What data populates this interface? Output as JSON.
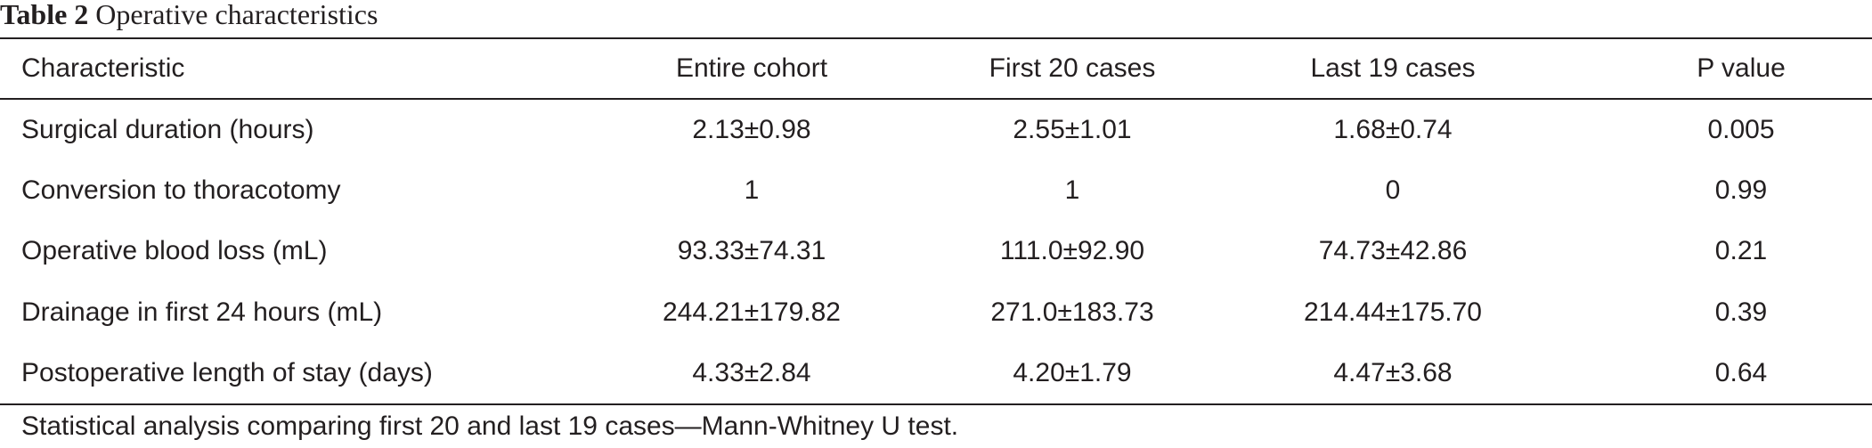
{
  "caption": {
    "label": "Table 2",
    "title": "Operative characteristics"
  },
  "table": {
    "headers": [
      "Characteristic",
      "Entire cohort",
      "First 20 cases",
      "Last 19 cases",
      "P value"
    ],
    "rows": [
      [
        "Surgical duration (hours)",
        "2.13±0.98",
        "2.55±1.01",
        "1.68±0.74",
        "0.005"
      ],
      [
        "Conversion to thoracotomy",
        "1",
        "1",
        "0",
        "0.99"
      ],
      [
        "Operative blood loss (mL)",
        "93.33±74.31",
        "111.0±92.90",
        "74.73±42.86",
        "0.21"
      ],
      [
        "Drainage in first 24 hours (mL)",
        "244.21±179.82",
        "271.0±183.73",
        "214.44±175.70",
        "0.39"
      ],
      [
        "Postoperative length of stay (days)",
        "4.33±2.84",
        "4.20±1.79",
        "4.47±3.68",
        "0.64"
      ]
    ]
  },
  "footnote": "Statistical analysis comparing first 20 and last 19 cases—Mann-Whitney U test."
}
